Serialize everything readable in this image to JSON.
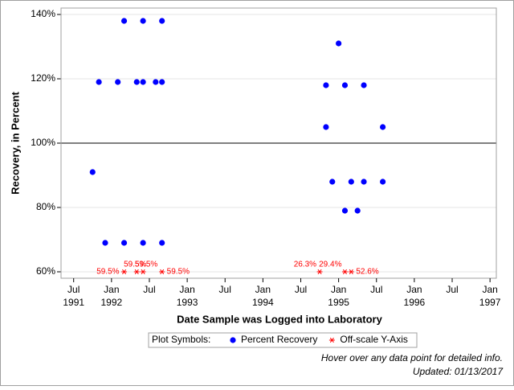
{
  "chart_data": {
    "type": "scatter",
    "ylabel": "Recovery, in Percent",
    "xlabel": "Date Sample was Logged into Laboratory",
    "xlim": [
      "1991-05",
      "1997-02"
    ],
    "xticks": [
      {
        "value": "1991-07",
        "label": "Jul",
        "sublabel": "1991"
      },
      {
        "value": "1992-01",
        "label": "Jan",
        "sublabel": "1992"
      },
      {
        "value": "1992-07",
        "label": "Jul"
      },
      {
        "value": "1993-01",
        "label": "Jan",
        "sublabel": "1993"
      },
      {
        "value": "1993-07",
        "label": "Jul"
      },
      {
        "value": "1994-01",
        "label": "Jan",
        "sublabel": "1994"
      },
      {
        "value": "1994-07",
        "label": "Jul"
      },
      {
        "value": "1995-01",
        "label": "Jan",
        "sublabel": "1995"
      },
      {
        "value": "1995-07",
        "label": "Jul"
      },
      {
        "value": "1996-01",
        "label": "Jan",
        "sublabel": "1996"
      },
      {
        "value": "1996-07",
        "label": "Jul"
      },
      {
        "value": "1997-01",
        "label": "Jan",
        "sublabel": "1997"
      }
    ],
    "ylim": [
      58,
      142
    ],
    "yticks": [
      {
        "value": 60,
        "label": "60%"
      },
      {
        "value": 80,
        "label": "80%"
      },
      {
        "value": 100,
        "label": "100%"
      },
      {
        "value": 120,
        "label": "120%"
      },
      {
        "value": 140,
        "label": "140%"
      }
    ],
    "grid": true,
    "refline": 100,
    "legend_title": "Plot Symbols:",
    "series": [
      {
        "name": "Percent Recovery",
        "color": "#0000ff",
        "marker": "dot",
        "x": [
          "1991-10",
          "1991-11",
          "1991-12",
          "1992-02",
          "1992-03",
          "1992-03",
          "1992-05",
          "1992-06",
          "1992-06",
          "1992-06",
          "1992-08",
          "1992-09",
          "1992-09",
          "1992-09",
          "1994-11",
          "1994-11",
          "1994-12",
          "1995-01",
          "1995-02",
          "1995-02",
          "1995-03",
          "1995-04",
          "1995-05",
          "1995-05",
          "1995-08",
          "1995-08"
        ],
        "values": [
          91,
          119,
          69,
          119,
          138,
          69,
          119,
          119,
          69,
          138,
          119,
          119,
          138,
          69,
          105,
          118,
          88,
          131,
          79,
          118,
          88,
          79,
          88,
          118,
          105,
          88
        ]
      },
      {
        "name": "Off-scale Y-Axis",
        "color": "#ff0000",
        "marker": "star",
        "x": [
          "1992-03",
          "1992-05",
          "1992-06",
          "1992-09",
          "1994-10",
          "1995-02",
          "1995-03"
        ],
        "values": [
          59.5,
          59.5,
          59.5,
          59.5,
          26.3,
          29.4,
          52.6
        ],
        "value_labels": [
          "59.5%",
          "59.5%",
          "59.5%",
          "59.5%",
          "26.3%",
          "29.4%",
          "52.6%"
        ]
      }
    ]
  },
  "footnotes": [
    "Hover over any data point for detailed info.",
    "Updated: 01/13/2017"
  ]
}
